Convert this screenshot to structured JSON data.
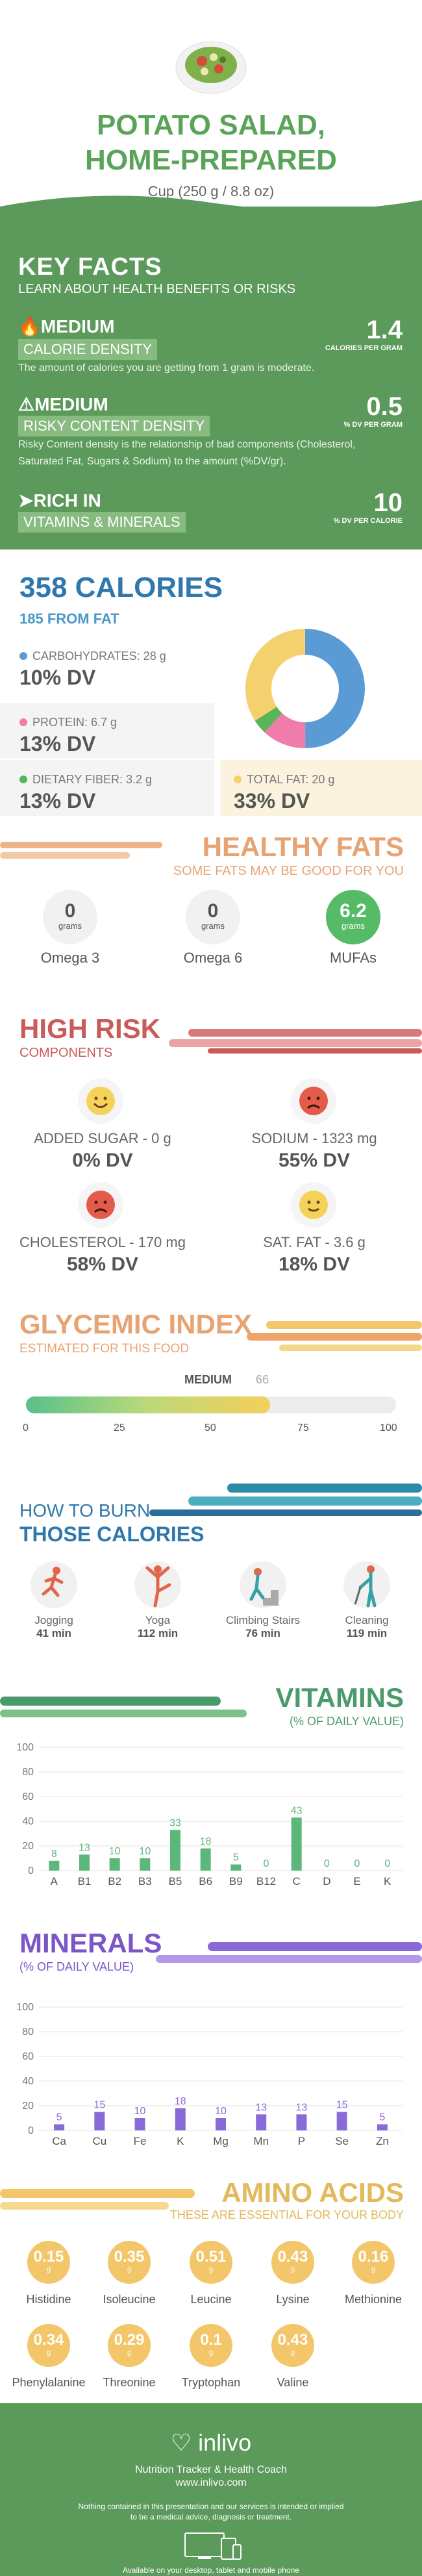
{
  "header": {
    "title_line1": "POTATO SALAD,",
    "title_line2": "HOME-PREPARED",
    "serving": "Cup (250 g / 8.8 oz)"
  },
  "key_facts": {
    "title": "KEY FACTS",
    "subtitle": "LEARN ABOUT HEALTH BENEFITS OR RISKS",
    "items": [
      {
        "level": "MEDIUM",
        "label": "CALORIE DENSITY",
        "desc": "The amount of calories you are getting from 1 gram is moderate.",
        "value": "1.4",
        "unit": "CALORIES PER GRAM"
      },
      {
        "level": "MEDIUM",
        "label": "RISKY CONTENT DENSITY",
        "desc": "Risky Content density is the relationship of bad components (Cholesterol, Saturated Fat, Sugars & Sodium) to the amount (%DV/gr).",
        "value": "0.5",
        "unit": "% DV PER GRAM"
      },
      {
        "level": "RICH  IN",
        "label": "VITAMINS & MINERALS",
        "desc": "",
        "value": "10",
        "unit": "% DV PER CALORIE"
      }
    ]
  },
  "calories": {
    "title": "358 CALORIES",
    "from_fat": "185 FROM FAT",
    "macros": [
      {
        "label": "CARBOHYDRATES: 28 g",
        "dv": "10% DV",
        "color": "#5b9bd5"
      },
      {
        "label": "PROTEIN: 6.7 g",
        "dv": "13% DV",
        "color": "#f07cab"
      },
      {
        "label": "DIETARY FIBER: 3.2 g",
        "dv": "13% DV",
        "color": "#5ab55a"
      },
      {
        "label": "TOTAL FAT: 20 g",
        "dv": "33% DV",
        "color": "#f5d06e"
      }
    ]
  },
  "healthy_fats": {
    "title": "HEALTHY FATS",
    "subtitle": "SOME FATS MAY BE GOOD FOR YOU",
    "unit": "grams",
    "items": [
      {
        "value": "0",
        "label": "Omega 3"
      },
      {
        "value": "0",
        "label": "Omega 6"
      },
      {
        "value": "6.2",
        "label": "MUFAs"
      }
    ]
  },
  "high_risk": {
    "title": "HIGH RISK",
    "subtitle": "COMPONENTS",
    "items": [
      {
        "label": "ADDED SUGAR - 0 g",
        "dv": "0% DV",
        "mood": "happy"
      },
      {
        "label": "SODIUM - 1323 mg",
        "dv": "55% DV",
        "mood": "sad"
      },
      {
        "label": "CHOLESTEROL - 170 mg",
        "dv": "58% DV",
        "mood": "sad"
      },
      {
        "label": "SAT. FAT - 3.6 g",
        "dv": "18% DV",
        "mood": "smile"
      }
    ]
  },
  "glycemic": {
    "title": "GLYCEMIC INDEX",
    "subtitle": "ESTIMATED FOR THIS FOOD",
    "level": "MEDIUM",
    "value": 66,
    "value_text": "66",
    "ticks": [
      "0",
      "25",
      "50",
      "75",
      "100"
    ]
  },
  "burn": {
    "title1": "HOW TO BURN",
    "title2": "THOSE CALORIES",
    "activities": [
      {
        "name": "Jogging",
        "time": "41 min"
      },
      {
        "name": "Yoga",
        "time": "112 min"
      },
      {
        "name": "Climbing Stairs",
        "time": "76 min"
      },
      {
        "name": "Cleaning",
        "time": "119 min"
      }
    ]
  },
  "vitamins": {
    "title": "VITAMINS",
    "subtitle": "(% OF DAILY VALUE)",
    "color": "#5cb87a",
    "yticks": [
      "0",
      "20",
      "40",
      "60",
      "80",
      "100"
    ],
    "chart_data": {
      "type": "bar",
      "categories": [
        "A",
        "B1",
        "B2",
        "B3",
        "B5",
        "B6",
        "B9",
        "B12",
        "C",
        "D",
        "E",
        "K"
      ],
      "values": [
        8,
        13,
        10,
        10,
        33,
        18,
        5,
        0,
        43,
        0,
        0,
        0
      ],
      "labels": [
        "8",
        "13",
        "10",
        "10",
        "33",
        "18",
        "5",
        "0",
        "43",
        "0",
        "0",
        "0"
      ],
      "ylim": [
        0,
        100
      ]
    }
  },
  "minerals": {
    "title": "MINERALS",
    "subtitle": "(% OF DAILY VALUE)",
    "color": "#8a6ad8",
    "yticks": [
      "0",
      "20",
      "40",
      "60",
      "80",
      "100"
    ],
    "chart_data": {
      "type": "bar",
      "categories": [
        "Ca",
        "Cu",
        "Fe",
        "K",
        "Mg",
        "Mn",
        "P",
        "Se",
        "Zn"
      ],
      "values": [
        5,
        15,
        10,
        18,
        10,
        13,
        13,
        15,
        5
      ],
      "labels": [
        "5",
        "15",
        "10",
        "18",
        "10",
        "13",
        "13",
        "15",
        "5"
      ],
      "ylim": [
        0,
        100
      ]
    }
  },
  "amino": {
    "title": "AMINO ACIDS",
    "subtitle": "THESE ARE ESSENTIAL FOR YOUR BODY",
    "unit": "g",
    "items": [
      {
        "value": "0.15",
        "name": "Histidine"
      },
      {
        "value": "0.35",
        "name": "Isoleucine"
      },
      {
        "value": "0.51",
        "name": "Leucine"
      },
      {
        "value": "0.43",
        "name": "Lysine"
      },
      {
        "value": "0.16",
        "name": "Methionine"
      },
      {
        "value": "0.34",
        "name": "Phenylalanine"
      },
      {
        "value": "0.29",
        "name": "Threonine"
      },
      {
        "value": "0.1",
        "name": "Tryptophan"
      },
      {
        "value": "0.43",
        "name": "Valine"
      }
    ]
  },
  "footer": {
    "logo": "inlivo",
    "line1": "Nutrition Tracker & Health Coach",
    "line2": "www.inlivo.com",
    "line3": "Nothing contained in this presentation and our services is intended or implied",
    "line4": "to be a medical advice, diagnosis or treatment.",
    "line5": "Available on your desktop, tablet and mobile phone"
  }
}
